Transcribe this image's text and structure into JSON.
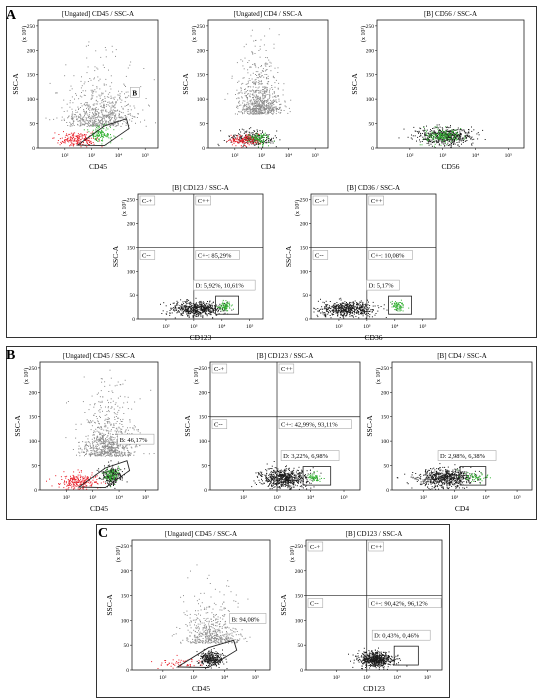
{
  "figure": {
    "panels": [
      {
        "letter": "A"
      },
      {
        "letter": "B"
      },
      {
        "letter": "C"
      }
    ]
  },
  "chart_data": [
    {
      "type": "scatter",
      "panel": "A",
      "title": "[Ungated] CD45 / SSC-A",
      "xlabel": "CD45",
      "ylabel": "SSC-A",
      "yunit": "(x 10³)",
      "x_scale": "log",
      "xlim": [
        10,
        300000
      ],
      "ylim": [
        0,
        262
      ],
      "xticks": [
        "10²",
        "10³",
        "10⁴",
        "10⁵"
      ],
      "yticks": [
        "0",
        "50",
        "100",
        "150",
        "200",
        "250"
      ],
      "series": [
        {
          "color": "#8c8c8c",
          "points": 700,
          "x_log_center": 3.3,
          "x_log_spread": 0.65,
          "y_center": 45,
          "y_spread": 60
        },
        {
          "color": "#e8202a",
          "points": 200,
          "x_log_center": 2.5,
          "x_log_spread": 0.35,
          "y_center": 18,
          "y_spread": 8
        },
        {
          "color": "#33b233",
          "points": 130,
          "x_log_center": 3.35,
          "x_log_spread": 0.2,
          "y_center": 28,
          "y_spread": 9
        }
      ],
      "annotations": [
        {
          "text": "B"
        }
      ]
    },
    {
      "type": "scatter",
      "panel": "A",
      "title": "[Ungated] CD4 / SSC-A",
      "xlabel": "CD4",
      "ylabel": "SSC-A",
      "yunit": "(x 10³)",
      "x_scale": "log",
      "xlim": [
        10,
        300000
      ],
      "ylim": [
        0,
        262
      ],
      "xticks": [
        "10²",
        "10³",
        "10⁴",
        "10⁵"
      ],
      "yticks": [
        "0",
        "50",
        "100",
        "150",
        "200",
        "250"
      ],
      "series": [
        {
          "color": "#8c8c8c",
          "points": 750,
          "x_log_center": 2.9,
          "x_log_spread": 0.4,
          "y_center": 70,
          "y_spread": 65
        },
        {
          "color": "#1a1a1a",
          "points": 260,
          "x_log_center": 2.6,
          "x_log_spread": 0.4,
          "y_center": 20,
          "y_spread": 8
        },
        {
          "color": "#e8202a",
          "points": 150,
          "x_log_center": 2.3,
          "x_log_spread": 0.3,
          "y_center": 17,
          "y_spread": 6
        },
        {
          "color": "#33b233",
          "points": 90,
          "x_log_center": 2.85,
          "x_log_spread": 0.2,
          "y_center": 20,
          "y_spread": 6
        }
      ]
    },
    {
      "type": "scatter",
      "panel": "A",
      "title": "[B] CD56 / SSC-A",
      "xlabel": "CD56",
      "ylabel": "SSC-A",
      "yunit": "(x 10³)",
      "x_scale": "log",
      "xlim": [
        10,
        300000
      ],
      "ylim": [
        0,
        262
      ],
      "xticks": [
        "10²",
        "10³",
        "10⁴",
        "10⁵"
      ],
      "yticks": [
        "0",
        "50",
        "100",
        "150",
        "200",
        "250"
      ],
      "series": [
        {
          "color": "#1a1a1a",
          "points": 550,
          "x_log_center": 3.1,
          "x_log_spread": 0.4,
          "y_center": 25,
          "y_spread": 9
        },
        {
          "color": "#33b233",
          "points": 160,
          "x_log_center": 3.0,
          "x_log_spread": 0.25,
          "y_center": 27,
          "y_spread": 7
        }
      ]
    },
    {
      "type": "scatter",
      "panel": "A",
      "title": "[B] CD123 / SSC-A",
      "xlabel": "CD123",
      "ylabel": "SSC-A",
      "yunit": "(x 10³)",
      "x_scale": "log",
      "xlim": [
        10,
        300000
      ],
      "ylim": [
        0,
        262
      ],
      "xticks": [
        "10²",
        "10³",
        "10⁴",
        "10⁵"
      ],
      "yticks": [
        "0",
        "50",
        "100",
        "150",
        "200",
        "250"
      ],
      "quadrant_x": 1000,
      "quadrant_y": 150,
      "quadrants": [
        "C-+",
        "C++",
        "C--",
        "C+-: 85,29%"
      ],
      "gate_label": "D: 5,92%, 10,61%",
      "gate_x": [
        6000,
        40000
      ],
      "gate_y": [
        10,
        48
      ],
      "series": [
        {
          "color": "#1a1a1a",
          "points": 550,
          "x_log_center": 3.1,
          "x_log_spread": 0.45,
          "y_center": 22,
          "y_spread": 8
        },
        {
          "color": "#33b233",
          "points": 70,
          "x_log_center": 4.1,
          "x_log_spread": 0.1,
          "y_center": 28,
          "y_spread": 5
        }
      ]
    },
    {
      "type": "scatter",
      "panel": "A",
      "title": "[B] CD36 / SSC-A",
      "xlabel": "CD36",
      "ylabel": "SSC-A",
      "yunit": "(x 10³)",
      "x_scale": "log",
      "xlim": [
        10,
        300000
      ],
      "ylim": [
        0,
        262
      ],
      "xticks": [
        "10²",
        "10³",
        "10⁴",
        "10⁵"
      ],
      "yticks": [
        "0",
        "50",
        "100",
        "150",
        "200",
        "250"
      ],
      "quadrant_x": 1000,
      "quadrant_y": 150,
      "quadrants": [
        "C-+",
        "C++",
        "C--",
        "C+-: 10,08%"
      ],
      "gate_label": "D: 5,17%",
      "gate_x": [
        6000,
        40000
      ],
      "gate_y": [
        10,
        48
      ],
      "series": [
        {
          "color": "#1a1a1a",
          "points": 550,
          "x_log_center": 2.3,
          "x_log_spread": 0.5,
          "y_center": 22,
          "y_spread": 8
        },
        {
          "color": "#33b233",
          "points": 70,
          "x_log_center": 4.1,
          "x_log_spread": 0.12,
          "y_center": 28,
          "y_spread": 5
        }
      ]
    },
    {
      "type": "scatter",
      "panel": "B",
      "title": "[Ungated] CD45 / SSC-A",
      "xlabel": "CD45",
      "ylabel": "SSC-A",
      "yunit": "(x 10³)",
      "x_scale": "log",
      "xlim": [
        10,
        300000
      ],
      "ylim": [
        0,
        262
      ],
      "xticks": [
        "10²",
        "10³",
        "10⁴",
        "10⁵"
      ],
      "yticks": [
        "0",
        "50",
        "100",
        "150",
        "200",
        "250"
      ],
      "gate_label": "B: 46,17%",
      "series": [
        {
          "color": "#8c8c8c",
          "points": 800,
          "x_log_center": 3.6,
          "x_log_spread": 0.5,
          "y_center": 70,
          "y_spread": 70
        },
        {
          "color": "#e8202a",
          "points": 230,
          "x_log_center": 2.4,
          "x_log_spread": 0.4,
          "y_center": 18,
          "y_spread": 8
        },
        {
          "color": "#1a1a1a",
          "points": 250,
          "x_log_center": 3.7,
          "x_log_spread": 0.2,
          "y_center": 30,
          "y_spread": 10
        },
        {
          "color": "#33b233",
          "points": 90,
          "x_log_center": 3.7,
          "x_log_spread": 0.15,
          "y_center": 32,
          "y_spread": 8
        }
      ]
    },
    {
      "type": "scatter",
      "panel": "B",
      "title": "[B] CD123 / SSC-A",
      "xlabel": "CD123",
      "ylabel": "SSC-A",
      "yunit": "(x 10³)",
      "x_scale": "log",
      "xlim": [
        10,
        300000
      ],
      "ylim": [
        0,
        262
      ],
      "xticks": [
        "10²",
        "10³",
        "10⁴",
        "10⁵"
      ],
      "yticks": [
        "0",
        "50",
        "100",
        "150",
        "200",
        "250"
      ],
      "quadrant_x": 1000,
      "quadrant_y": 150,
      "quadrants": [
        "C-+",
        "C++",
        "C--",
        "C+-: 42,99%, 93,11%"
      ],
      "gate_label": "D: 3,22%, 6,98%",
      "gate_x": [
        6000,
        40000
      ],
      "gate_y": [
        10,
        48
      ],
      "series": [
        {
          "color": "#1a1a1a",
          "points": 650,
          "x_log_center": 3.2,
          "x_log_spread": 0.35,
          "y_center": 25,
          "y_spread": 10
        },
        {
          "color": "#33b233",
          "points": 60,
          "x_log_center": 4.1,
          "x_log_spread": 0.1,
          "y_center": 28,
          "y_spread": 5
        }
      ]
    },
    {
      "type": "scatter",
      "panel": "B",
      "title": "[B] CD4 / SSC-A",
      "xlabel": "CD4",
      "ylabel": "SSC-A",
      "yunit": "(x 10³)",
      "x_scale": "log",
      "xlim": [
        10,
        300000
      ],
      "ylim": [
        0,
        262
      ],
      "xticks": [
        "10²",
        "10³",
        "10⁴",
        "10⁵"
      ],
      "yticks": [
        "0",
        "50",
        "100",
        "150",
        "200",
        "250"
      ],
      "gate_label": "D: 2,98%, 6,38%",
      "gate_x": [
        1500,
        10000
      ],
      "gate_y": [
        10,
        48
      ],
      "series": [
        {
          "color": "#1a1a1a",
          "points": 650,
          "x_log_center": 2.7,
          "x_log_spread": 0.45,
          "y_center": 25,
          "y_spread": 10
        },
        {
          "color": "#33b233",
          "points": 60,
          "x_log_center": 3.6,
          "x_log_spread": 0.2,
          "y_center": 28,
          "y_spread": 6
        }
      ]
    },
    {
      "type": "scatter",
      "panel": "C",
      "title": "[Ungated] CD45 / SSC-A",
      "xlabel": "CD45",
      "ylabel": "SSC-A",
      "yunit": "(x 10³)",
      "x_scale": "log",
      "xlim": [
        10,
        300000
      ],
      "ylim": [
        0,
        262
      ],
      "xticks": [
        "10²",
        "10³",
        "10⁴",
        "10⁵"
      ],
      "yticks": [
        "0",
        "50",
        "100",
        "150",
        "200",
        "250"
      ],
      "gate_label": "B: 94,08%",
      "series": [
        {
          "color": "#8c8c8c",
          "points": 500,
          "x_log_center": 3.6,
          "x_log_spread": 0.45,
          "y_center": 55,
          "y_spread": 50
        },
        {
          "color": "#e8202a",
          "points": 60,
          "x_log_center": 2.6,
          "x_log_spread": 0.4,
          "y_center": 15,
          "y_spread": 6
        },
        {
          "color": "#1a1a1a",
          "points": 300,
          "x_log_center": 3.55,
          "x_log_spread": 0.2,
          "y_center": 22,
          "y_spread": 8
        }
      ]
    },
    {
      "type": "scatter",
      "panel": "C",
      "title": "[B] CD123 / SSC-A",
      "xlabel": "CD123",
      "ylabel": "SSC-A",
      "yunit": "(x 10³)",
      "x_scale": "log",
      "xlim": [
        10,
        300000
      ],
      "ylim": [
        0,
        262
      ],
      "xticks": [
        "10²",
        "10³",
        "10⁴",
        "10⁵"
      ],
      "yticks": [
        "0",
        "50",
        "100",
        "150",
        "200",
        "250"
      ],
      "quadrant_x": 1000,
      "quadrant_y": 150,
      "quadrants": [
        "C-+",
        "C++",
        "C--",
        "C+-: 90,42%, 96,12%"
      ],
      "gate_label": "D: 0,43%, 0,46%",
      "gate_x": [
        8000,
        50000
      ],
      "gate_y": [
        10,
        48
      ],
      "series": [
        {
          "color": "#1a1a1a",
          "points": 600,
          "x_log_center": 3.3,
          "x_log_spread": 0.3,
          "y_center": 22,
          "y_spread": 8
        }
      ]
    }
  ]
}
